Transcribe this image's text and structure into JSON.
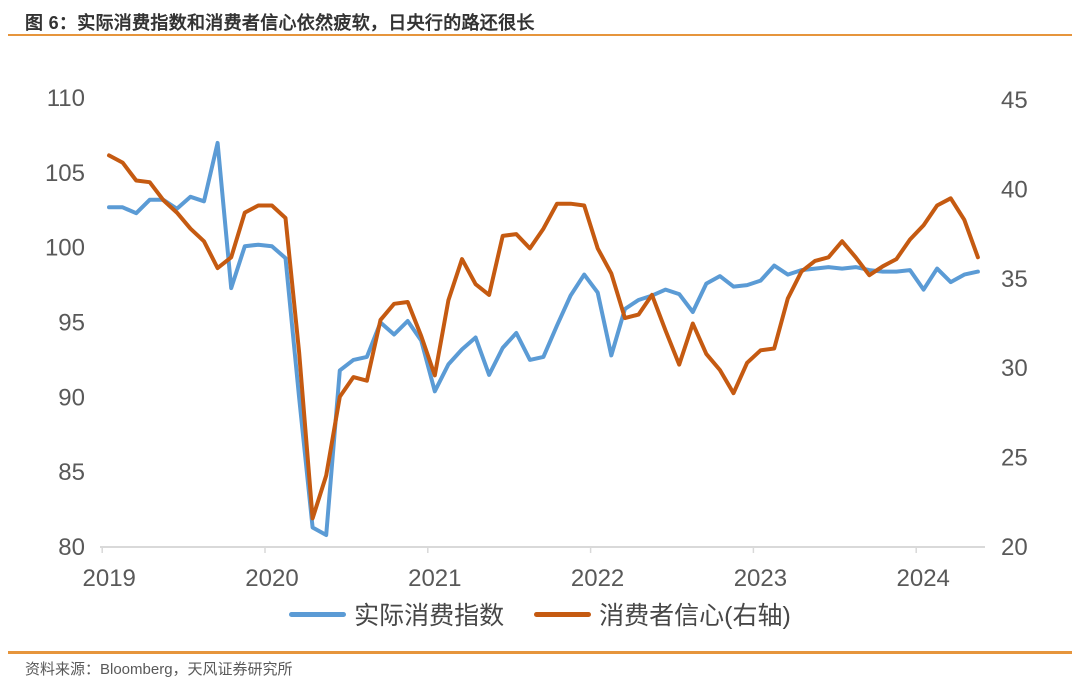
{
  "header": {
    "title": "图 6：实际消费指数和消费者信心依然疲软，日央行的路还很长"
  },
  "footer": {
    "source": "资料来源：Bloomberg，天风证券研究所"
  },
  "theme": {
    "accent_rule_color": "#e6953c",
    "title_color": "#333333",
    "tick_label_color": "#595959",
    "background": "#ffffff"
  },
  "chart_data": {
    "type": "line",
    "title": "",
    "xlabel": "",
    "ylabel": "",
    "grid": false,
    "legend_position": "bottom",
    "axis_color": "#d9d9d9",
    "x_monthly_start": "2019-01",
    "x_monthly_end": "2024-05",
    "x_ticks": [
      "2019",
      "2020",
      "2021",
      "2022",
      "2023",
      "2024"
    ],
    "left_axis": {
      "min": 80,
      "max": 110,
      "ticks": [
        110,
        105,
        100,
        95,
        90,
        85,
        80
      ]
    },
    "right_axis": {
      "min": 20,
      "max": 45,
      "ticks": [
        45,
        40,
        35,
        30,
        25,
        20
      ]
    },
    "series": [
      {
        "name": "实际消费指数",
        "axis": "left",
        "color": "#5b9bd5",
        "values": [
          102.7,
          102.7,
          102.3,
          103.2,
          103.2,
          102.6,
          103.4,
          103.1,
          107.0,
          97.3,
          100.1,
          100.2,
          100.1,
          99.3,
          90.0,
          81.3,
          80.8,
          91.8,
          92.5,
          92.7,
          95.0,
          94.2,
          95.1,
          93.8,
          90.4,
          92.2,
          93.2,
          94.0,
          91.5,
          93.3,
          94.3,
          92.5,
          92.7,
          94.8,
          96.8,
          98.2,
          97.0,
          92.8,
          95.9,
          96.5,
          96.8,
          97.2,
          96.9,
          95.7,
          97.6,
          98.1,
          97.4,
          97.5,
          97.8,
          98.8,
          98.2,
          98.5,
          98.6,
          98.7,
          98.6,
          98.7,
          98.5,
          98.4,
          98.4,
          98.5,
          97.2,
          98.6,
          97.7,
          98.2,
          98.4
        ]
      },
      {
        "name": "消费者信心(右轴)",
        "axis": "right",
        "color": "#c55a11",
        "values": [
          41.9,
          41.5,
          40.5,
          40.4,
          39.4,
          38.7,
          37.8,
          37.1,
          35.6,
          36.2,
          38.7,
          39.1,
          39.1,
          38.4,
          30.9,
          21.6,
          24.0,
          28.4,
          29.5,
          29.3,
          32.7,
          33.6,
          33.7,
          31.8,
          29.6,
          33.8,
          36.1,
          34.7,
          34.1,
          37.4,
          37.5,
          36.7,
          37.8,
          39.2,
          39.2,
          39.1,
          36.7,
          35.3,
          32.8,
          33.0,
          34.1,
          32.1,
          30.2,
          32.5,
          30.8,
          29.9,
          28.6,
          30.3,
          31.0,
          31.1,
          33.9,
          35.4,
          36.0,
          36.2,
          37.1,
          36.2,
          35.2,
          35.7,
          36.1,
          37.2,
          38.0,
          39.1,
          39.5,
          38.3,
          36.2
        ]
      }
    ]
  }
}
